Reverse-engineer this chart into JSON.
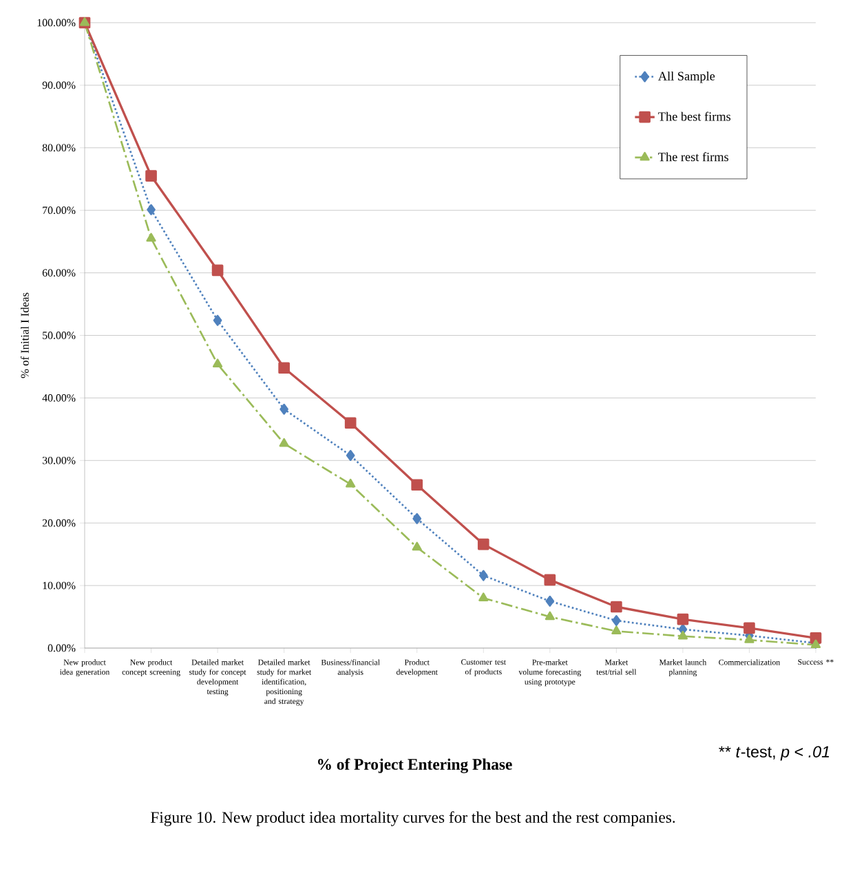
{
  "chart_data": {
    "type": "line",
    "xlabel": "**% of Project Entering Phase**",
    "ylabel": "% of Initial I Ideas",
    "annotations": [
      "** *t*-test, *p* < *.01*",
      "Figure 10. New product idea mortality curves for the best and the rest companies."
    ],
    "categories": [
      "New product idea generation",
      "New product concept screening",
      "Detailed market study for concept development testing",
      "Detailed market study for market identification, positioning and strategy",
      "Business/financial analysis",
      "Product development",
      "Customer test of products",
      "Pre-market volume forecasting using prototype",
      "Market test/trial sell",
      "Market launch planning",
      "Commercialization",
      "Success **"
    ],
    "series": [
      {
        "name": "All Sample",
        "color": "#4f81bd",
        "marker": "diamond",
        "line_style": "dotted",
        "values": [
          100,
          70.1,
          52.4,
          38.2,
          30.8,
          20.7,
          11.6,
          7.5,
          4.4,
          3.0,
          2.0,
          0.8
        ]
      },
      {
        "name": "The best firms",
        "color": "#c0504d",
        "marker": "square",
        "line_style": "solid",
        "values": [
          100,
          75.5,
          60.4,
          44.8,
          36.0,
          26.1,
          16.6,
          10.9,
          6.6,
          4.6,
          3.2,
          1.6
        ]
      },
      {
        "name": "The rest firms",
        "color": "#9bbb59",
        "marker": "triangle",
        "line_style": "dashed",
        "values": [
          100,
          65.5,
          45.4,
          32.7,
          26.2,
          16.1,
          8.0,
          5.0,
          2.7,
          1.9,
          1.3,
          0.5
        ]
      }
    ],
    "ylim": [
      0,
      100
    ],
    "yticks": [
      {
        "value": 0,
        "label": "0.00%"
      },
      {
        "value": 10,
        "label": "10.00%"
      },
      {
        "value": 20,
        "label": "20.00%"
      },
      {
        "value": 30,
        "label": "30.00%"
      },
      {
        "value": 40,
        "label": "40.00%"
      },
      {
        "value": 50,
        "label": "50.00%"
      },
      {
        "value": 60,
        "label": "60.00%"
      },
      {
        "value": 70,
        "label": "70.00%"
      },
      {
        "value": 80,
        "label": "80.00%"
      },
      {
        "value": 90,
        "label": "90.00%"
      },
      {
        "value": 100,
        "label": "100.00%"
      }
    ],
    "grid": "y",
    "legend": "top right"
  }
}
